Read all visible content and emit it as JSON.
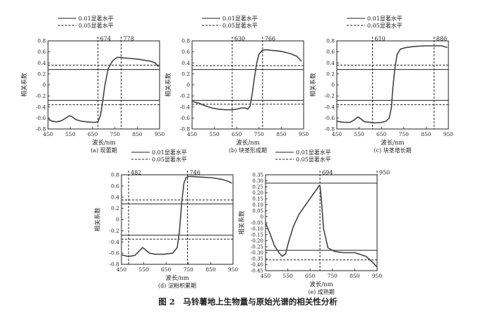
{
  "figure_caption": "图 2　马铃薯地上生物量与原始光谱的相关性分析",
  "legend": {
    "line_solid": "0.01显著水平",
    "line_dashed": "0.05显著水平"
  },
  "colors": {
    "curve": "#444444",
    "axis": "#222222"
  },
  "chart_data": [
    {
      "type": "line",
      "caption": "(a) 现蕾期",
      "xlabel": "波长/nm",
      "ylabel": "相关系数",
      "xlim": [
        450,
        950
      ],
      "ylim": [
        -0.8,
        0.8
      ],
      "xticks": [
        450,
        550,
        650,
        750,
        850,
        950
      ],
      "yticks": [
        -0.8,
        -0.6,
        -0.4,
        -0.2,
        0,
        0.2,
        0.4,
        0.6,
        0.8
      ],
      "sig_001": 0.28,
      "sig_005": 0.36,
      "vlines": [
        674,
        778
      ],
      "vline_labels": [
        "674",
        "778"
      ],
      "x": [
        450,
        470,
        490,
        510,
        530,
        545,
        555,
        575,
        600,
        625,
        650,
        665,
        675,
        685,
        695,
        705,
        720,
        740,
        760,
        775,
        790,
        820,
        850,
        880,
        910,
        930,
        945
      ],
      "y": [
        -0.62,
        -0.66,
        -0.67,
        -0.65,
        -0.6,
        -0.56,
        -0.57,
        -0.63,
        -0.66,
        -0.67,
        -0.68,
        -0.68,
        -0.66,
        -0.55,
        -0.3,
        0.0,
        0.3,
        0.44,
        0.5,
        0.5,
        0.49,
        0.48,
        0.47,
        0.45,
        0.43,
        0.4,
        0.33
      ]
    },
    {
      "type": "line",
      "caption": "(b) 块茎形成期",
      "xlabel": "波长/nm",
      "ylabel": "相关系数",
      "xlim": [
        450,
        950
      ],
      "ylim": [
        -0.8,
        0.8
      ],
      "xticks": [
        450,
        550,
        650,
        750,
        850,
        950
      ],
      "yticks": [
        -0.8,
        -0.6,
        -0.4,
        -0.2,
        0,
        0.2,
        0.4,
        0.6,
        0.8
      ],
      "sig_001": 0.28,
      "sig_005": 0.35,
      "vlines": [
        630,
        766
      ],
      "vline_labels": [
        "630",
        "766"
      ],
      "x": [
        450,
        480,
        510,
        540,
        570,
        600,
        630,
        650,
        670,
        690,
        700,
        710,
        720,
        730,
        740,
        750,
        765,
        780,
        800,
        830,
        860,
        890,
        920,
        940
      ],
      "y": [
        -0.3,
        -0.33,
        -0.38,
        -0.42,
        -0.44,
        -0.45,
        -0.45,
        -0.44,
        -0.42,
        -0.42,
        -0.44,
        -0.38,
        -0.15,
        0.15,
        0.4,
        0.56,
        0.63,
        0.64,
        0.63,
        0.62,
        0.6,
        0.57,
        0.52,
        0.43
      ]
    },
    {
      "type": "line",
      "caption": "(c) 块茎增长期",
      "xlabel": "波长/nm",
      "ylabel": "相关系数",
      "xlim": [
        450,
        950
      ],
      "ylim": [
        -0.8,
        0.8
      ],
      "xticks": [
        450,
        550,
        650,
        750,
        850,
        950
      ],
      "yticks": [
        -0.8,
        -0.6,
        -0.4,
        -0.2,
        0,
        0.2,
        0.4,
        0.6,
        0.8
      ],
      "sig_001": 0.28,
      "sig_005": 0.36,
      "vlines": [
        610,
        886
      ],
      "vline_labels": [
        "610",
        "886"
      ],
      "x": [
        450,
        480,
        510,
        530,
        545,
        555,
        575,
        600,
        620,
        650,
        670,
        685,
        695,
        700,
        710,
        720,
        735,
        760,
        800,
        850,
        890,
        920,
        945
      ],
      "y": [
        -0.66,
        -0.68,
        -0.68,
        -0.63,
        -0.58,
        -0.61,
        -0.67,
        -0.68,
        -0.69,
        -0.68,
        -0.66,
        -0.6,
        -0.4,
        -0.1,
        0.3,
        0.55,
        0.65,
        0.68,
        0.7,
        0.71,
        0.71,
        0.71,
        0.68
      ]
    },
    {
      "type": "line",
      "caption": "(d) 淀粉积累期",
      "xlabel": "波长/nm",
      "ylabel": "相关系数",
      "xlim": [
        450,
        950
      ],
      "ylim": [
        -0.8,
        0.8
      ],
      "xticks": [
        450,
        550,
        650,
        750,
        850,
        950
      ],
      "yticks": [
        -0.8,
        -0.6,
        -0.4,
        -0.2,
        0,
        0.2,
        0.4,
        0.6,
        0.8
      ],
      "sig_001": 0.28,
      "sig_005": 0.35,
      "vlines": [
        482,
        746
      ],
      "vline_labels": [
        "482",
        "746"
      ],
      "x": [
        450,
        480,
        510,
        530,
        545,
        555,
        575,
        600,
        640,
        680,
        700,
        710,
        720,
        730,
        740,
        750,
        770,
        800,
        850,
        900,
        930,
        945
      ],
      "y": [
        -0.63,
        -0.66,
        -0.64,
        -0.56,
        -0.5,
        -0.53,
        -0.6,
        -0.62,
        -0.62,
        -0.6,
        -0.5,
        -0.2,
        0.3,
        0.65,
        0.75,
        0.77,
        0.77,
        0.76,
        0.75,
        0.72,
        0.68,
        0.65
      ]
    },
    {
      "type": "line",
      "caption": "(e) 成熟期",
      "xlabel": "波长/nm",
      "ylabel": "相关系数",
      "xlim": [
        450,
        950
      ],
      "ylim": [
        -0.45,
        0.35
      ],
      "xticks": [
        450,
        550,
        650,
        750,
        850,
        950
      ],
      "yticks": [
        -0.45,
        -0.4,
        -0.35,
        -0.3,
        -0.25,
        -0.2,
        -0.15,
        -0.1,
        -0.05,
        0,
        0.05,
        0.1,
        0.15,
        0.2,
        0.25,
        0.3,
        0.35
      ],
      "sig_001": 0.28,
      "sig_005": 0.36,
      "vlines": [
        694,
        950
      ],
      "vline_labels": [
        "694",
        "950"
      ],
      "x": [
        450,
        470,
        490,
        510,
        525,
        540,
        555,
        575,
        600,
        630,
        660,
        680,
        690,
        695,
        700,
        710,
        730,
        760,
        800,
        850,
        900,
        930,
        950
      ],
      "y": [
        -0.05,
        -0.14,
        -0.24,
        -0.3,
        -0.33,
        -0.31,
        -0.2,
        -0.08,
        0.02,
        0.1,
        0.18,
        0.23,
        0.26,
        0.25,
        0.15,
        -0.1,
        -0.26,
        -0.29,
        -0.3,
        -0.3,
        -0.33,
        -0.38,
        -0.42
      ]
    }
  ]
}
